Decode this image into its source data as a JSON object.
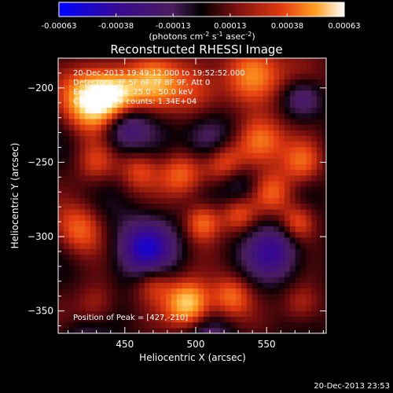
{
  "chart_data": {
    "type": "heatmap",
    "title": "Reconstructed RHESSI Image",
    "xlabel": "Heliocentric X (arcsec)",
    "ylabel": "Heliocentric Y (arcsec)",
    "xlim": [
      403,
      592
    ],
    "ylim": [
      -365,
      -180
    ],
    "xticks": [
      450,
      500,
      550
    ],
    "yticks": [
      -200,
      -250,
      -300,
      -350
    ],
    "colorbar": {
      "ticks": [
        "-0.00063",
        "-0.00038",
        "-0.00013",
        "0.00013",
        "0.00038",
        "0.00063"
      ],
      "range": [
        -0.00063,
        0.00063
      ],
      "label_parts": [
        "(photons cm",
        "-2",
        " s",
        "-1",
        " asec",
        "-2",
        ")"
      ]
    },
    "annotations": [
      "20-Dec-2013 19:49:12.000 to 19:52:52.000",
      "Detectors: 3F 5F 6F 7F 8F 9F, Att 0",
      "Energy Range: 25.0 - 50.0 keV",
      "Clean    Total counts: 1.34E+04"
    ],
    "peak_label": "Position of Peak = [427,-210]",
    "peak": [
      427,
      -210
    ],
    "timestamp": "20-Dec-2013 23:53",
    "hot_spots": [
      {
        "x": 427,
        "y": -208,
        "v": 1.0,
        "s": 14
      },
      {
        "x": 445,
        "y": -205,
        "v": 0.7,
        "s": 12
      },
      {
        "x": 470,
        "y": -196,
        "v": 0.55,
        "s": 13
      },
      {
        "x": 500,
        "y": -200,
        "v": 0.45,
        "s": 14
      },
      {
        "x": 540,
        "y": -190,
        "v": 0.5,
        "s": 14
      },
      {
        "x": 575,
        "y": -195,
        "v": 0.45,
        "s": 12
      },
      {
        "x": 545,
        "y": -235,
        "v": 0.65,
        "s": 12
      },
      {
        "x": 520,
        "y": -250,
        "v": 0.55,
        "s": 11
      },
      {
        "x": 490,
        "y": -258,
        "v": 0.5,
        "s": 11
      },
      {
        "x": 460,
        "y": -255,
        "v": 0.4,
        "s": 10
      },
      {
        "x": 430,
        "y": -250,
        "v": 0.35,
        "s": 10
      },
      {
        "x": 575,
        "y": -250,
        "v": 0.45,
        "s": 10
      },
      {
        "x": 555,
        "y": -270,
        "v": 0.45,
        "s": 10
      },
      {
        "x": 572,
        "y": -290,
        "v": 0.5,
        "s": 9
      },
      {
        "x": 418,
        "y": -295,
        "v": 0.5,
        "s": 12
      },
      {
        "x": 505,
        "y": -290,
        "v": 0.55,
        "s": 9
      },
      {
        "x": 530,
        "y": -285,
        "v": 0.4,
        "s": 9
      },
      {
        "x": 495,
        "y": -345,
        "v": 0.85,
        "s": 11
      },
      {
        "x": 470,
        "y": -330,
        "v": 0.45,
        "s": 10
      },
      {
        "x": 525,
        "y": -340,
        "v": 0.5,
        "s": 10
      },
      {
        "x": 575,
        "y": -345,
        "v": 0.35,
        "s": 10
      },
      {
        "x": 430,
        "y": -345,
        "v": 0.3,
        "s": 10
      }
    ],
    "cold_spots": [
      {
        "x": 465,
        "y": -308,
        "v": -0.8,
        "s": 14
      },
      {
        "x": 450,
        "y": -225,
        "v": -0.6,
        "s": 12
      },
      {
        "x": 510,
        "y": -235,
        "v": -0.5,
        "s": 12
      },
      {
        "x": 575,
        "y": -205,
        "v": -0.55,
        "s": 10
      },
      {
        "x": 555,
        "y": -310,
        "v": -0.6,
        "s": 13
      },
      {
        "x": 510,
        "y": -375,
        "v": -0.45,
        "s": 12
      },
      {
        "x": 420,
        "y": -375,
        "v": -0.35,
        "s": 10
      },
      {
        "x": 530,
        "y": -265,
        "v": -0.35,
        "s": 10
      }
    ]
  }
}
